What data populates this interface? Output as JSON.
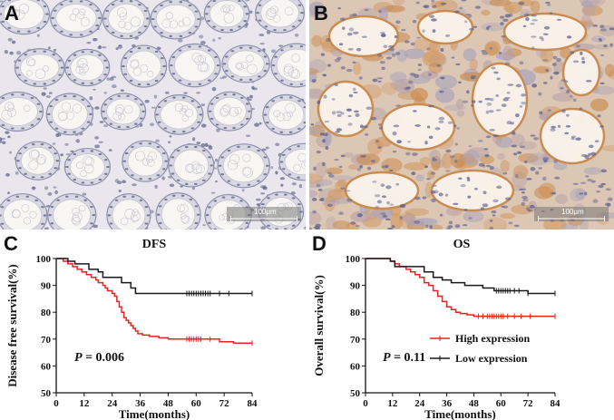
{
  "panels": {
    "A": {
      "label": "A",
      "scale_bar": "100μm"
    },
    "B": {
      "label": "B",
      "scale_bar": "100μm"
    },
    "C": {
      "label": "C"
    },
    "D": {
      "label": "D"
    }
  },
  "colors": {
    "high": "#e8231f",
    "low": "#1a1a1a",
    "tissue_a": "#ebe9ee",
    "tissue_b": "#d8b89a",
    "stain_brown": "#c98a4e",
    "nuclei": "#5a5f8a"
  },
  "chart_data": [
    {
      "type": "line",
      "title": "DFS",
      "xlabel": "Time(months)",
      "ylabel": "Disease free survival(%)",
      "xlim": [
        0,
        84
      ],
      "ylim": [
        50,
        100
      ],
      "xticks": [
        0,
        12,
        24,
        36,
        48,
        60,
        72,
        84
      ],
      "yticks": [
        50,
        60,
        70,
        80,
        90,
        100
      ],
      "annotation": {
        "p_label": "P",
        "p_text": " = 0.006"
      },
      "series": [
        {
          "key": "high",
          "steps": [
            [
              0,
              100
            ],
            [
              3,
              99
            ],
            [
              5,
              98
            ],
            [
              7,
              97
            ],
            [
              9,
              96
            ],
            [
              11,
              95
            ],
            [
              13,
              94
            ],
            [
              15,
              93
            ],
            [
              17,
              92
            ],
            [
              18,
              91
            ],
            [
              20,
              90
            ],
            [
              21,
              89
            ],
            [
              22,
              88
            ],
            [
              24,
              87
            ],
            [
              25,
              86
            ],
            [
              26,
              84
            ],
            [
              27,
              82
            ],
            [
              28,
              80
            ],
            [
              29,
              78
            ],
            [
              30,
              77
            ],
            [
              31,
              76
            ],
            [
              32,
              75
            ],
            [
              33,
              74
            ],
            [
              34,
              73
            ],
            [
              35,
              72
            ],
            [
              37,
              71.5
            ],
            [
              40,
              71
            ],
            [
              44,
              70.5
            ],
            [
              48,
              70
            ],
            [
              55,
              70
            ],
            [
              64,
              70
            ],
            [
              70,
              69
            ],
            [
              76,
              68.5
            ],
            [
              84,
              68.5
            ]
          ],
          "censors": [
            56,
            57,
            58,
            59,
            60,
            61,
            62,
            66,
            84
          ]
        },
        {
          "key": "low",
          "steps": [
            [
              0,
              100
            ],
            [
              5,
              99
            ],
            [
              8,
              98
            ],
            [
              14,
              96
            ],
            [
              18,
              95
            ],
            [
              20,
              93
            ],
            [
              26,
              93
            ],
            [
              28,
              91
            ],
            [
              30,
              91
            ],
            [
              32,
              89
            ],
            [
              34,
              87
            ],
            [
              84,
              87
            ]
          ],
          "censors": [
            56,
            57,
            58,
            59,
            60,
            61,
            62,
            63,
            64,
            65,
            66,
            70,
            74,
            84
          ]
        }
      ]
    },
    {
      "type": "line",
      "title": "OS",
      "xlabel": "Time(months)",
      "ylabel": "Overall survival(%)",
      "xlim": [
        0,
        84
      ],
      "ylim": [
        50,
        100
      ],
      "xticks": [
        0,
        12,
        24,
        36,
        48,
        60,
        72,
        84
      ],
      "yticks": [
        50,
        60,
        70,
        80,
        90,
        100
      ],
      "annotation": {
        "p_label": "P",
        "p_text": " = 0.11"
      },
      "legend": {
        "position": "lower-right",
        "entries": [
          "High expression",
          "Low expression"
        ]
      },
      "series": [
        {
          "key": "high",
          "name": "High expression",
          "steps": [
            [
              0,
              100
            ],
            [
              10,
              100
            ],
            [
              11,
              99
            ],
            [
              13,
              98
            ],
            [
              15,
              97
            ],
            [
              18,
              96
            ],
            [
              20,
              95
            ],
            [
              22,
              94
            ],
            [
              24,
              93
            ],
            [
              26,
              91
            ],
            [
              28,
              90
            ],
            [
              30,
              88
            ],
            [
              32,
              86
            ],
            [
              34,
              84
            ],
            [
              36,
              82
            ],
            [
              38,
              81
            ],
            [
              40,
              80
            ],
            [
              42,
              79.5
            ],
            [
              45,
              79
            ],
            [
              48,
              78.5
            ],
            [
              84,
              78.5
            ]
          ],
          "censors": [
            50,
            52,
            54,
            55,
            56,
            57,
            58,
            59,
            60,
            61,
            63,
            66,
            69,
            73,
            84
          ]
        },
        {
          "key": "low",
          "name": "Low expression",
          "steps": [
            [
              0,
              100
            ],
            [
              11,
              99
            ],
            [
              13,
              97
            ],
            [
              24,
              97
            ],
            [
              26,
              95
            ],
            [
              30,
              93
            ],
            [
              34,
              92
            ],
            [
              38,
              91
            ],
            [
              44,
              90
            ],
            [
              52,
              89
            ],
            [
              57,
              88
            ],
            [
              72,
              87
            ],
            [
              84,
              87
            ]
          ],
          "censors": [
            58,
            59,
            60,
            61,
            62,
            63,
            64,
            66,
            68,
            72,
            84
          ]
        }
      ]
    }
  ]
}
